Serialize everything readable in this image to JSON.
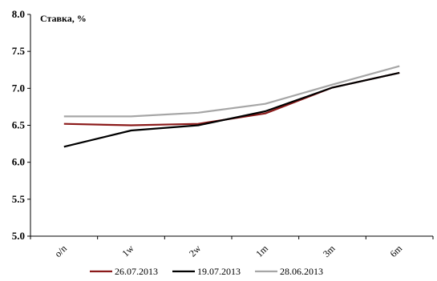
{
  "chart_data": {
    "type": "line",
    "ylabel": "Ставка, %",
    "xlabel": "",
    "title": "",
    "categories": [
      "o/n",
      "1w",
      "2w",
      "1m",
      "3m",
      "6m"
    ],
    "ylim": [
      5.0,
      8.0
    ],
    "yticks": [
      "5.0",
      "5.5",
      "6.0",
      "6.5",
      "7.0",
      "7.5",
      "8.0"
    ],
    "grid": false,
    "legend_position": "bottom",
    "series": [
      {
        "name": "26.07.2013",
        "color": "#8b1a1a",
        "values": [
          6.52,
          6.5,
          6.52,
          6.66,
          7.01,
          7.21
        ]
      },
      {
        "name": "19.07.2013",
        "color": "#000000",
        "values": [
          6.21,
          6.43,
          6.5,
          6.69,
          7.01,
          7.21
        ]
      },
      {
        "name": "28.06.2013",
        "color": "#a6a6a6",
        "values": [
          6.62,
          6.62,
          6.67,
          6.79,
          7.05,
          7.3
        ]
      }
    ]
  }
}
